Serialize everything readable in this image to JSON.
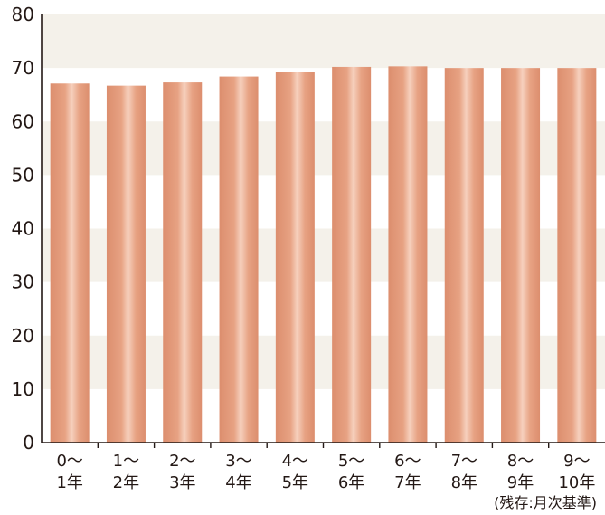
{
  "chart_data": {
    "type": "bar",
    "title": "",
    "xlabel": "",
    "ylabel": "",
    "ylim": [
      0,
      80
    ],
    "yticks": [
      0,
      10,
      20,
      30,
      40,
      50,
      60,
      70,
      80
    ],
    "grid": "alternating-bands",
    "categories": [
      [
        "0〜",
        "1年"
      ],
      [
        "1〜",
        "2年"
      ],
      [
        "2〜",
        "3年"
      ],
      [
        "3〜",
        "4年"
      ],
      [
        "4〜",
        "5年"
      ],
      [
        "5〜",
        "6年"
      ],
      [
        "6〜",
        "7年"
      ],
      [
        "7〜",
        "8年"
      ],
      [
        "8〜",
        "9年"
      ],
      [
        "9〜",
        "10年"
      ]
    ],
    "values": [
      67.1,
      66.7,
      67.3,
      68.4,
      69.3,
      70.2,
      70.3,
      70.0,
      70.0,
      70.0
    ],
    "footnote": "(残存:月次基準)",
    "colors": {
      "bar_edge": "#dc8e6e",
      "bar_mid": "#e7a283",
      "bar_highlight": "#f6d0bd",
      "band": "#f4f1ea",
      "axis": "#231815"
    }
  }
}
